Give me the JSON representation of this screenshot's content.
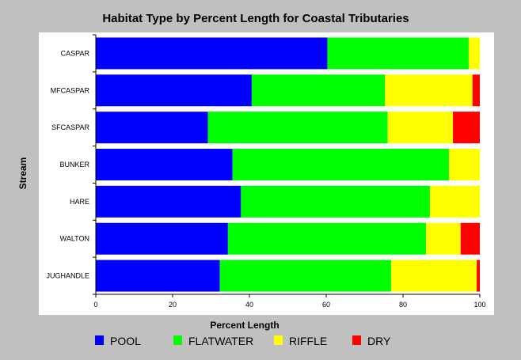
{
  "chart_data": {
    "type": "bar",
    "orientation": "horizontal",
    "stacked": true,
    "title": "Habitat Type by Percent Length for Coastal Tributaries",
    "xlabel": "Percent Length",
    "ylabel": "Stream",
    "xlim": [
      0,
      100
    ],
    "xticks": [
      0,
      20,
      40,
      60,
      80,
      100
    ],
    "grid": false,
    "legend_position": "bottom",
    "categories": [
      "CASPAR",
      "MFCASPAR",
      "SFCASPAR",
      "BUNKER",
      "HARE",
      "WALTON",
      "JUGHANDLE"
    ],
    "series": [
      {
        "name": "POOL",
        "color": "#0000ff",
        "values": [
          60.3,
          40.6,
          29.2,
          35.6,
          37.8,
          34.4,
          32.3
        ]
      },
      {
        "name": "FLATWATER",
        "color": "#00ff00",
        "values": [
          36.8,
          34.7,
          46.8,
          56.4,
          49.2,
          51.6,
          44.6
        ]
      },
      {
        "name": "RIFFLE",
        "color": "#ffff00",
        "values": [
          2.9,
          22.8,
          17.0,
          8.0,
          13.0,
          9.0,
          22.3
        ]
      },
      {
        "name": "DRY",
        "color": "#ff0000",
        "values": [
          0,
          1.9,
          7.0,
          0,
          0,
          5.0,
          0.8
        ]
      }
    ]
  }
}
